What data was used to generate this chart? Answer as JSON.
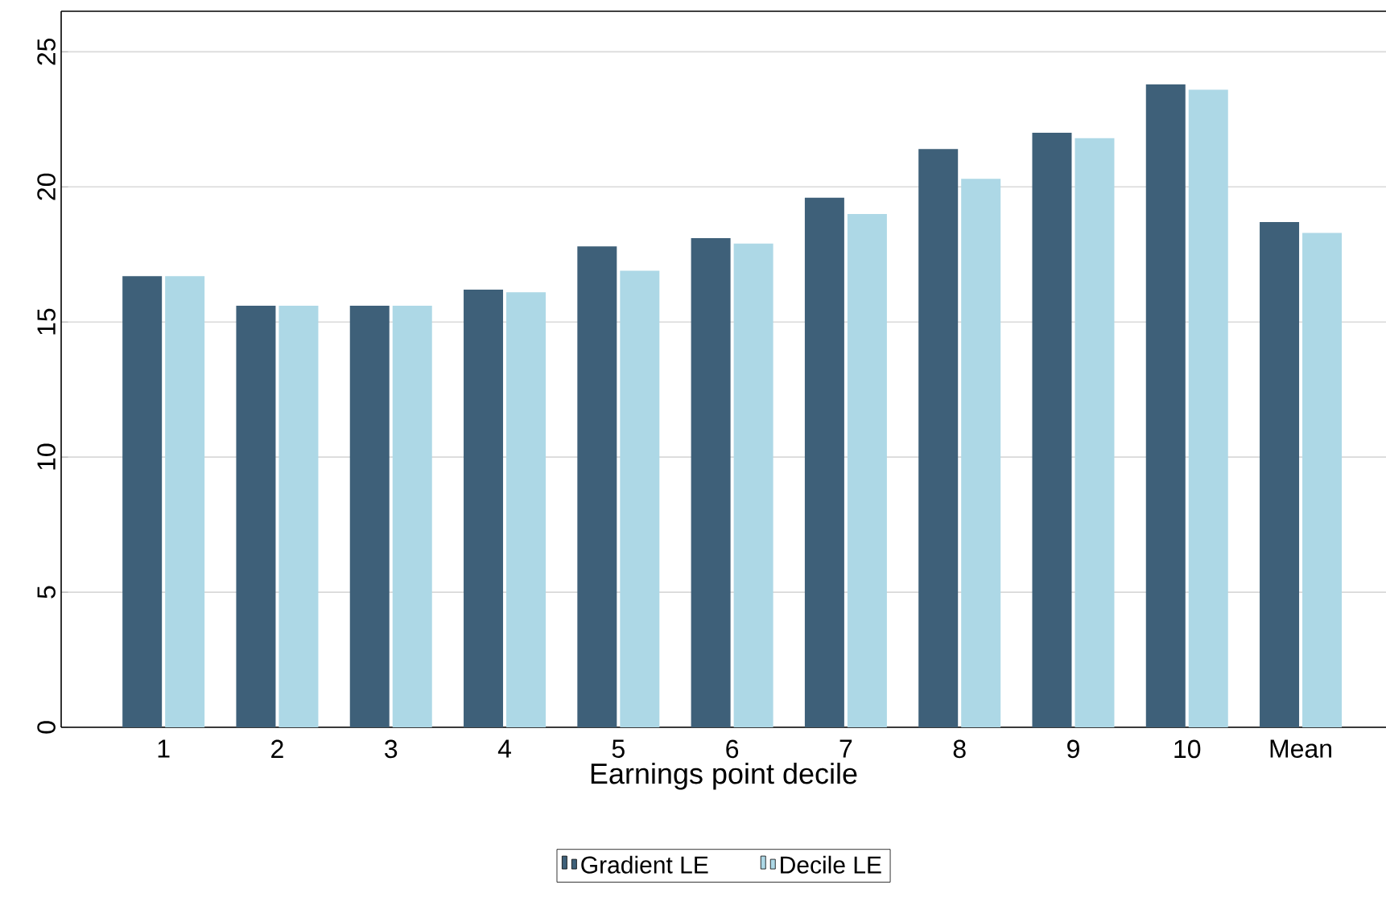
{
  "chart_data": {
    "type": "bar",
    "xlabel": "Earnings point decile",
    "categories": [
      "1",
      "2",
      "3",
      "4",
      "5",
      "6",
      "7",
      "8",
      "9",
      "10",
      "Mean"
    ],
    "series": [
      {
        "name": "Gradient LE",
        "color": "#3e6079",
        "values": [
          16.7,
          15.6,
          15.6,
          16.2,
          17.8,
          18.1,
          19.6,
          21.4,
          22.0,
          23.8,
          18.7
        ]
      },
      {
        "name": "Decile LE",
        "color": "#add8e6",
        "values": [
          16.7,
          15.6,
          15.6,
          16.1,
          16.9,
          17.9,
          19.0,
          20.3,
          21.8,
          23.6,
          18.3
        ]
      }
    ],
    "ylim": [
      0,
      26.5
    ],
    "yticks": [
      0,
      5,
      10,
      15,
      20,
      25
    ],
    "grid": "y",
    "legend": "bottom"
  }
}
